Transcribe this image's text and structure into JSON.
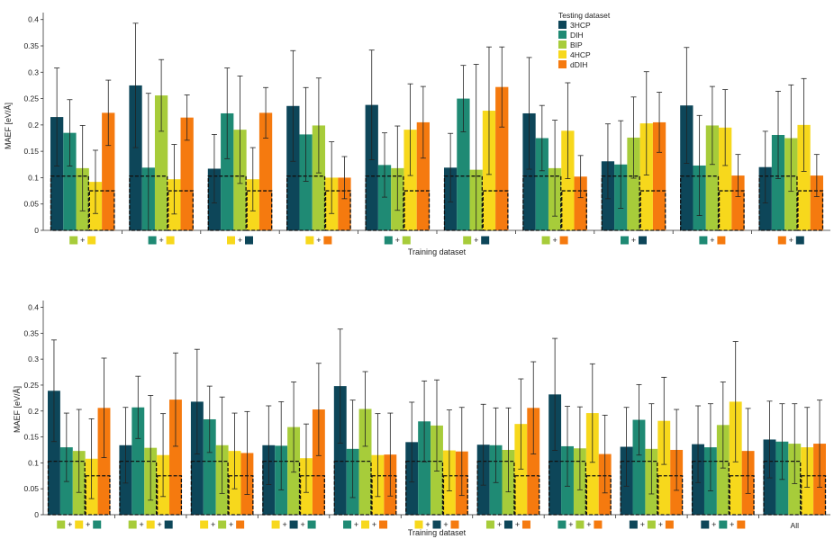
{
  "colors": {
    "3HCP": "#0d4659",
    "DIH": "#1f8a74",
    "BIP": "#a7cc3a",
    "4HCP": "#f7d81c",
    "dDIH": "#f57a0f"
  },
  "legend": {
    "title": "Testing dataset",
    "entries": [
      "3HCP",
      "DIH",
      "BIP",
      "4HCP",
      "dDIH"
    ]
  },
  "chart_data": [
    {
      "type": "bar",
      "xlabel": "Training dataset",
      "ylabel": "MAEF [eV/Å]",
      "ylim": [
        0,
        0.42
      ],
      "yticks": [
        "0",
        "0.05",
        "0.1",
        "0.15",
        "0.2",
        "0.25",
        "0.3",
        "0.35",
        "0.4"
      ],
      "series_names": [
        "3HCP",
        "DIH",
        "BIP",
        "4HCP",
        "dDIH"
      ],
      "groups": [
        {
          "training": [
            "BIP",
            "4HCP"
          ],
          "values": [
            0.215,
            0.185,
            0.118,
            0.092,
            0.223
          ],
          "errors": [
            0.093,
            0.063,
            0.081,
            0.06,
            0.062
          ],
          "baseline": [
            0.103,
            0.075
          ]
        },
        {
          "training": [
            "DIH",
            "4HCP"
          ],
          "values": [
            0.275,
            0.119,
            0.256,
            0.097,
            0.214
          ],
          "errors": [
            0.118,
            0.141,
            0.068,
            0.066,
            0.043
          ],
          "baseline": [
            0.103,
            0.075
          ]
        },
        {
          "training": [
            "4HCP",
            "3HCP"
          ],
          "values": [
            0.117,
            0.222,
            0.191,
            0.097,
            0.223
          ],
          "errors": [
            0.065,
            0.086,
            0.102,
            0.06,
            0.048
          ],
          "baseline": [
            0.103,
            0.075
          ]
        },
        {
          "training": [
            "4HCP",
            "dDIH"
          ],
          "values": [
            0.236,
            0.182,
            0.199,
            0.1,
            0.1
          ],
          "errors": [
            0.105,
            0.089,
            0.09,
            0.068,
            0.04
          ],
          "baseline": [
            0.103,
            0.075
          ]
        },
        {
          "training": [
            "DIH",
            "BIP"
          ],
          "values": [
            0.238,
            0.124,
            0.118,
            0.191,
            0.205
          ],
          "errors": [
            0.104,
            0.061,
            0.08,
            0.087,
            0.068
          ],
          "baseline": [
            0.103,
            0.075
          ]
        },
        {
          "training": [
            "BIP",
            "3HCP"
          ],
          "values": [
            0.119,
            0.25,
            0.115,
            0.227,
            0.272
          ],
          "errors": [
            0.065,
            0.063,
            0.2,
            0.121,
            0.076
          ],
          "baseline": [
            0.103,
            0.075
          ]
        },
        {
          "training": [
            "BIP",
            "dDIH"
          ],
          "values": [
            0.222,
            0.175,
            0.118,
            0.189,
            0.102
          ],
          "errors": [
            0.106,
            0.062,
            0.091,
            0.091,
            0.04
          ],
          "baseline": [
            0.103,
            0.075
          ]
        },
        {
          "training": [
            "DIH",
            "3HCP"
          ],
          "values": [
            0.131,
            0.125,
            0.176,
            0.203,
            0.205
          ],
          "errors": [
            0.071,
            0.083,
            0.077,
            0.098,
            0.057
          ],
          "baseline": [
            0.103,
            0.075
          ]
        },
        {
          "training": [
            "DIH",
            "dDIH"
          ],
          "values": [
            0.237,
            0.123,
            0.199,
            0.195,
            0.104
          ],
          "errors": [
            0.11,
            0.095,
            0.074,
            0.072,
            0.04
          ],
          "baseline": [
            0.103,
            0.075
          ]
        },
        {
          "training": [
            "dDIH",
            "3HCP"
          ],
          "values": [
            0.12,
            0.181,
            0.175,
            0.2,
            0.104
          ],
          "errors": [
            0.068,
            0.083,
            0.101,
            0.088,
            0.04
          ],
          "baseline": [
            0.103,
            0.075
          ]
        }
      ]
    },
    {
      "type": "bar",
      "xlabel": "Training dataset",
      "ylabel": "MAEF [eV/Å]",
      "ylim": [
        0,
        0.42
      ],
      "yticks": [
        "0",
        "0.05",
        "0.1",
        "0.15",
        "0.2",
        "0.25",
        "0.3",
        "0.35",
        "0.4"
      ],
      "series_names": [
        "3HCP",
        "DIH",
        "BIP",
        "4HCP",
        "dDIH"
      ],
      "groups": [
        {
          "training": [
            "BIP",
            "4HCP",
            "DIH"
          ],
          "values": [
            0.239,
            0.13,
            0.123,
            0.108,
            0.206
          ],
          "errors": [
            0.098,
            0.066,
            0.08,
            0.077,
            0.096
          ],
          "baseline": [
            0.103,
            0.075
          ]
        },
        {
          "training": [
            "BIP",
            "4HCP",
            "3HCP"
          ],
          "values": [
            0.134,
            0.207,
            0.129,
            0.115,
            0.222
          ],
          "errors": [
            0.073,
            0.06,
            0.101,
            0.08,
            0.09
          ],
          "baseline": [
            0.103,
            0.075
          ]
        },
        {
          "training": [
            "4HCP",
            "BIP",
            "dDIH"
          ],
          "values": [
            0.218,
            0.184,
            0.134,
            0.123,
            0.119
          ],
          "errors": [
            0.101,
            0.064,
            0.093,
            0.073,
            0.08
          ],
          "baseline": [
            0.103,
            0.075
          ]
        },
        {
          "training": [
            "4HCP",
            "3HCP",
            "DIH"
          ],
          "values": [
            0.134,
            0.133,
            0.169,
            0.109,
            0.203
          ],
          "errors": [
            0.076,
            0.085,
            0.087,
            0.066,
            0.089
          ],
          "baseline": [
            0.103,
            0.075
          ]
        },
        {
          "training": [
            "DIH",
            "4HCP",
            "dDIH"
          ],
          "values": [
            0.248,
            0.127,
            0.204,
            0.115,
            0.116
          ],
          "errors": [
            0.11,
            0.094,
            0.072,
            0.08,
            0.08
          ],
          "baseline": [
            0.103,
            0.075
          ]
        },
        {
          "training": [
            "4HCP",
            "3HCP",
            "dDIH"
          ],
          "values": [
            0.14,
            0.18,
            0.172,
            0.124,
            0.122
          ],
          "errors": [
            0.077,
            0.078,
            0.088,
            0.078,
            0.085
          ],
          "baseline": [
            0.103,
            0.075
          ]
        },
        {
          "training": [
            "BIP",
            "3HCP",
            "dDIH"
          ],
          "values": [
            0.135,
            0.134,
            0.125,
            0.175,
            0.206
          ],
          "errors": [
            0.078,
            0.072,
            0.081,
            0.087,
            0.089
          ],
          "baseline": [
            0.103,
            0.075
          ]
        },
        {
          "training": [
            "DIH",
            "BIP",
            "dDIH"
          ],
          "values": [
            0.232,
            0.132,
            0.128,
            0.196,
            0.117
          ],
          "errors": [
            0.108,
            0.077,
            0.08,
            0.095,
            0.075
          ],
          "baseline": [
            0.103,
            0.075
          ]
        },
        {
          "training": [
            "3HCP",
            "BIP",
            "dDIH"
          ],
          "values": [
            0.131,
            0.183,
            0.127,
            0.181,
            0.125
          ],
          "errors": [
            0.076,
            0.068,
            0.087,
            0.084,
            0.078
          ],
          "baseline": [
            0.103,
            0.075
          ]
        },
        {
          "training": [
            "3HCP",
            "DIH",
            "dDIH"
          ],
          "values": [
            0.136,
            0.13,
            0.173,
            0.218,
            0.123
          ],
          "errors": [
            0.074,
            0.084,
            0.083,
            0.116,
            0.082
          ],
          "baseline": [
            0.103,
            0.075
          ]
        },
        {
          "training": [],
          "label": "All",
          "values": [
            0.145,
            0.141,
            0.137,
            0.13,
            0.137
          ],
          "errors": [
            0.074,
            0.073,
            0.077,
            0.077,
            0.084
          ],
          "baseline": [
            0.103,
            0.075
          ]
        }
      ]
    }
  ]
}
